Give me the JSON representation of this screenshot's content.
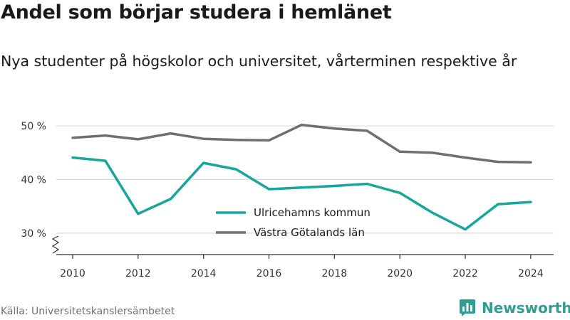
{
  "title": "Andel som börjar studera i hemlänet",
  "subtitle": "Nya studenter på högskolor och universitet, vårterminen respektive år",
  "source": "Källa: Universitetskanslersämbetet",
  "brand": {
    "name": "Newsworthy",
    "icon": "newsworthy-logo-icon",
    "color": "#2e9e92"
  },
  "chart_data": {
    "type": "line",
    "title": "",
    "xlabel": "",
    "ylabel": "",
    "x": [
      2010,
      2011,
      2012,
      2013,
      2014,
      2015,
      2016,
      2017,
      2018,
      2019,
      2020,
      2021,
      2022,
      2023,
      2024
    ],
    "x_ticks": [
      "2010",
      "2012",
      "2014",
      "2016",
      "2018",
      "2020",
      "2022",
      "2024"
    ],
    "y_ticks": [
      "30 %",
      "40 %",
      "50 %"
    ],
    "ylim": [
      26,
      52
    ],
    "xlim": [
      2009.5,
      2024.7
    ],
    "grid": true,
    "axis_break": true,
    "legend_position": "center",
    "series": [
      {
        "name": "Ulricehamns kommun",
        "color": "#16a69a",
        "values": [
          44.1,
          43.5,
          33.6,
          36.4,
          43.1,
          41.9,
          38.2,
          38.5,
          38.8,
          39.2,
          37.5,
          33.8,
          30.7,
          35.4,
          35.8
        ]
      },
      {
        "name": "Västra Götalands län",
        "color": "#6e6e73",
        "values": [
          47.8,
          48.2,
          47.5,
          48.6,
          47.6,
          47.4,
          47.3,
          50.2,
          49.5,
          49.1,
          45.2,
          45.0,
          44.1,
          43.3,
          43.2
        ]
      }
    ]
  }
}
